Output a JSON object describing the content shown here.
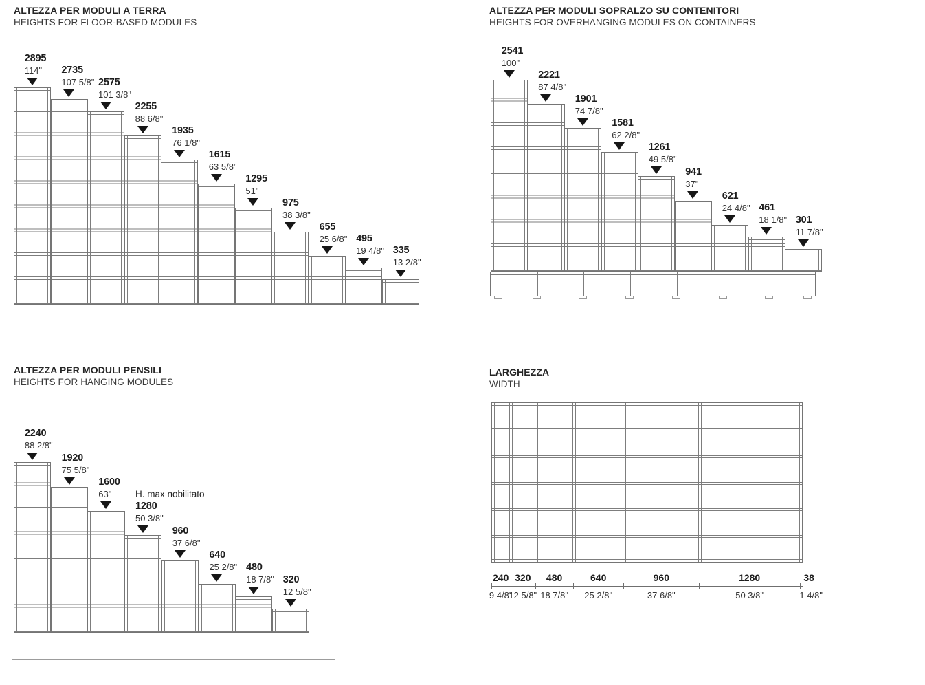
{
  "page": {
    "background": "#ffffff",
    "line_color": "#757575",
    "text_color": "#222222",
    "arrow_color": "#161616"
  },
  "sections": {
    "terra": {
      "title_it": "ALTEZZA PER MODULI A TERRA",
      "title_en": "HEIGHTS FOR FLOOR-BASED MODULES",
      "modules": [
        {
          "mm": 2895,
          "inch": "114\""
        },
        {
          "mm": 2735,
          "inch": "107 5/8\""
        },
        {
          "mm": 2575,
          "inch": "101 3/8\""
        },
        {
          "mm": 2255,
          "inch": "88 6/8\""
        },
        {
          "mm": 1935,
          "inch": "76 1/8\""
        },
        {
          "mm": 1615,
          "inch": "63 5/8\""
        },
        {
          "mm": 1295,
          "inch": "51\""
        },
        {
          "mm": 975,
          "inch": "38 3/8\""
        },
        {
          "mm": 655,
          "inch": "25 6/8\""
        },
        {
          "mm": 495,
          "inch": "19 4/8\""
        },
        {
          "mm": 335,
          "inch": "13 2/8\""
        }
      ]
    },
    "sopralzo": {
      "title_it": "ALTEZZA PER MODULI SOPRALZO SU CONTENITORI",
      "title_en": "HEIGHTS FOR OVERHANGING MODULES ON CONTAINERS",
      "modules": [
        {
          "mm": 2541,
          "inch": "100\""
        },
        {
          "mm": 2221,
          "inch": "87 4/8\""
        },
        {
          "mm": 1901,
          "inch": "74 7/8\""
        },
        {
          "mm": 1581,
          "inch": "62 2/8\""
        },
        {
          "mm": 1261,
          "inch": "49 5/8\""
        },
        {
          "mm": 941,
          "inch": "37\""
        },
        {
          "mm": 621,
          "inch": "24 4/8\""
        },
        {
          "mm": 461,
          "inch": "18 1/8\""
        },
        {
          "mm": 301,
          "inch": "11 7/8\""
        }
      ],
      "container_cells": 7
    },
    "pensili": {
      "title_it": "ALTEZZA PER MODULI PENSILI",
      "title_en": "HEIGHTS FOR HANGING MODULES",
      "modules": [
        {
          "mm": 2240,
          "inch": "88 2/8\""
        },
        {
          "mm": 1920,
          "inch": "75 5/8\""
        },
        {
          "mm": 1600,
          "inch": "63\""
        },
        {
          "mm": 1280,
          "inch": "50 3/8\"",
          "prefix": "H. max nobilitato"
        },
        {
          "mm": 960,
          "inch": "37 6/8\""
        },
        {
          "mm": 640,
          "inch": "25 2/8\""
        },
        {
          "mm": 480,
          "inch": "18 7/8\""
        },
        {
          "mm": 320,
          "inch": "12 5/8\""
        }
      ]
    },
    "larghezza": {
      "title_it": "LARGHEZZA",
      "title_en": "WIDTH",
      "widths": [
        {
          "mm": 240,
          "inch": "9 4/8\""
        },
        {
          "mm": 320,
          "inch": "12 5/8\""
        },
        {
          "mm": 480,
          "inch": "18 7/8\""
        },
        {
          "mm": 640,
          "inch": "25 2/8\""
        },
        {
          "mm": 960,
          "inch": "37 6/8\""
        },
        {
          "mm": 1280,
          "inch": "50 3/8\""
        }
      ],
      "side_panel": {
        "mm": 38,
        "inch": "1 4/8\""
      },
      "shelf_rows": 6
    }
  }
}
